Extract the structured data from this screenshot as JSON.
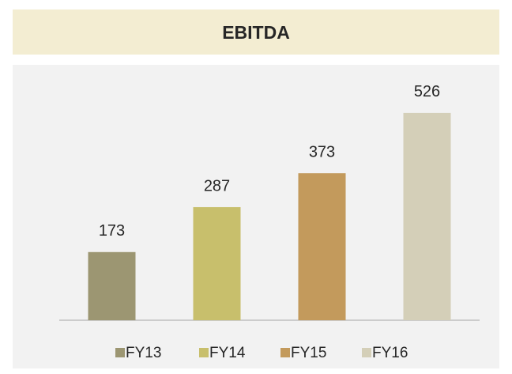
{
  "chart_data": {
    "type": "bar",
    "title": "EBITDA",
    "categories": [
      "FY13",
      "FY14",
      "FY15",
      "FY16"
    ],
    "values": [
      173,
      287,
      373,
      526
    ],
    "colors": [
      "#9c9672",
      "#c8bf6c",
      "#c39a5c",
      "#d4cfb8"
    ],
    "ylim": [
      0,
      600
    ],
    "legend": "bottom",
    "grid": false
  }
}
